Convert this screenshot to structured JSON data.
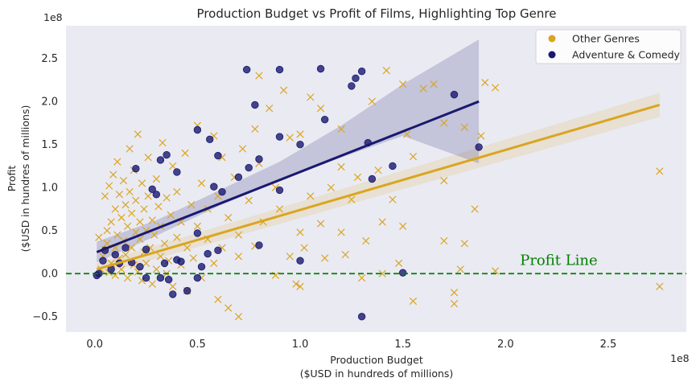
{
  "chart_data": {
    "type": "scatter",
    "title": "Production Budget vs Profit of Films, Highlighting Top Genre",
    "xlabel_line1": "Production Budget",
    "xlabel_line2": "($USD in hundreds of millions)",
    "ylabel_line1": "Profit",
    "ylabel_line2": "($USD in hundres of millions)",
    "x_offset_text": "1e8",
    "y_offset_text": "1e8",
    "xlim": [
      -0.14,
      2.88
    ],
    "ylim": [
      -0.68,
      2.88
    ],
    "x_ticks": [
      0.0,
      0.5,
      1.0,
      1.5,
      2.0,
      2.5
    ],
    "x_tick_labels": [
      "0.0",
      "0.5",
      "1.0",
      "1.5",
      "2.0",
      "2.5"
    ],
    "y_ticks": [
      -0.5,
      0.0,
      0.5,
      1.0,
      1.5,
      2.0,
      2.5
    ],
    "y_tick_labels": [
      "−0.5",
      "0.0",
      "0.5",
      "1.0",
      "1.5",
      "2.0",
      "2.5"
    ],
    "grid": false,
    "legend_position": "top-right",
    "background_color": "#eaeaf2",
    "series": [
      {
        "name": "Other Genres",
        "color": "#daa520",
        "marker": "x",
        "points": [
          [
            0.02,
            0.42
          ],
          [
            0.03,
            0.05
          ],
          [
            0.04,
            0.2
          ],
          [
            0.05,
            0.28
          ],
          [
            0.05,
            0.9
          ],
          [
            0.06,
            0.35
          ],
          [
            0.06,
            0.5
          ],
          [
            0.07,
            1.02
          ],
          [
            0.07,
            0.01
          ],
          [
            0.08,
            0.12
          ],
          [
            0.08,
            0.6
          ],
          [
            0.09,
            1.15
          ],
          [
            0.1,
            0.75
          ],
          [
            0.1,
            0.3
          ],
          [
            0.1,
            -0.02
          ],
          [
            0.11,
            0.45
          ],
          [
            0.11,
            1.3
          ],
          [
            0.12,
            0.92
          ],
          [
            0.12,
            0.18
          ],
          [
            0.13,
            0.65
          ],
          [
            0.13,
            0.05
          ],
          [
            0.14,
            1.08
          ],
          [
            0.14,
            0.38
          ],
          [
            0.15,
            0.8
          ],
          [
            0.15,
            0.22
          ],
          [
            0.16,
            0.55
          ],
          [
            0.16,
            -0.05
          ],
          [
            0.17,
            0.95
          ],
          [
            0.17,
            1.45
          ],
          [
            0.18,
            0.3
          ],
          [
            0.18,
            0.7
          ],
          [
            0.19,
            0.1
          ],
          [
            0.19,
            1.2
          ],
          [
            0.2,
            0.48
          ],
          [
            0.2,
            0.85
          ],
          [
            0.21,
            0.02
          ],
          [
            0.21,
            1.62
          ],
          [
            0.22,
            0.4
          ],
          [
            0.22,
            0.6
          ],
          [
            0.23,
            1.05
          ],
          [
            0.23,
            -0.08
          ],
          [
            0.24,
            0.25
          ],
          [
            0.24,
            0.75
          ],
          [
            0.25,
            0.5
          ],
          [
            0.25,
            0.12
          ],
          [
            0.26,
            0.9
          ],
          [
            0.26,
            1.35
          ],
          [
            0.27,
            0.3
          ],
          [
            0.28,
            0.62
          ],
          [
            0.28,
            -0.12
          ],
          [
            0.29,
            0.45
          ],
          [
            0.3,
            0.05
          ],
          [
            0.3,
            1.1
          ],
          [
            0.31,
            0.78
          ],
          [
            0.32,
            0.2
          ],
          [
            0.32,
            0.55
          ],
          [
            0.33,
            1.52
          ],
          [
            0.34,
            0.35
          ],
          [
            0.35,
            0.0
          ],
          [
            0.35,
            0.88
          ],
          [
            0.36,
            0.15
          ],
          [
            0.37,
            0.68
          ],
          [
            0.38,
            -0.15
          ],
          [
            0.38,
            1.25
          ],
          [
            0.4,
            0.42
          ],
          [
            0.4,
            0.95
          ],
          [
            0.42,
            0.1
          ],
          [
            0.42,
            0.6
          ],
          [
            0.44,
            1.4
          ],
          [
            0.45,
            0.3
          ],
          [
            0.45,
            -0.2
          ],
          [
            0.47,
            0.8
          ],
          [
            0.48,
            0.18
          ],
          [
            0.5,
            0.55
          ],
          [
            0.5,
            1.72
          ],
          [
            0.52,
            -0.05
          ],
          [
            0.52,
            1.05
          ],
          [
            0.55,
            0.4
          ],
          [
            0.55,
            0.75
          ],
          [
            0.58,
            0.12
          ],
          [
            0.58,
            1.6
          ],
          [
            0.6,
            -0.3
          ],
          [
            0.6,
            0.9
          ],
          [
            0.62,
            0.3
          ],
          [
            0.62,
            1.35
          ],
          [
            0.65,
            0.65
          ],
          [
            0.65,
            -0.4
          ],
          [
            0.68,
            1.12
          ],
          [
            0.7,
            0.2
          ],
          [
            0.7,
            0.45
          ],
          [
            0.7,
            -0.5
          ],
          [
            0.72,
            1.45
          ],
          [
            0.75,
            0.85
          ],
          [
            0.78,
            1.68
          ],
          [
            0.78,
            0.32
          ],
          [
            0.8,
            2.3
          ],
          [
            0.8,
            1.28
          ],
          [
            0.82,
            0.6
          ],
          [
            0.85,
            1.92
          ],
          [
            0.88,
            1.0
          ],
          [
            0.88,
            -0.02
          ],
          [
            0.9,
            0.75
          ],
          [
            0.92,
            2.13
          ],
          [
            0.95,
            0.2
          ],
          [
            0.95,
            1.58
          ],
          [
            0.98,
            -0.12
          ],
          [
            1.0,
            0.48
          ],
          [
            1.0,
            1.62
          ],
          [
            1.0,
            -0.15
          ],
          [
            1.02,
            0.3
          ],
          [
            1.05,
            0.9
          ],
          [
            1.05,
            2.05
          ],
          [
            1.1,
            0.58
          ],
          [
            1.1,
            1.92
          ],
          [
            1.12,
            0.18
          ],
          [
            1.15,
            1.0
          ],
          [
            1.2,
            0.48
          ],
          [
            1.2,
            1.68
          ],
          [
            1.2,
            1.24
          ],
          [
            1.22,
            0.22
          ],
          [
            1.25,
            0.86
          ],
          [
            1.28,
            1.12
          ],
          [
            1.3,
            -0.05
          ],
          [
            1.32,
            0.38
          ],
          [
            1.35,
            2.0
          ],
          [
            1.38,
            1.2
          ],
          [
            1.4,
            0.6
          ],
          [
            1.4,
            0.0
          ],
          [
            1.42,
            2.36
          ],
          [
            1.45,
            0.86
          ],
          [
            1.48,
            0.12
          ],
          [
            1.5,
            0.55
          ],
          [
            1.5,
            2.2
          ],
          [
            1.52,
            1.62
          ],
          [
            1.55,
            -0.32
          ],
          [
            1.55,
            1.36
          ],
          [
            1.6,
            2.15
          ],
          [
            1.65,
            2.2
          ],
          [
            1.7,
            0.38
          ],
          [
            1.7,
            1.75
          ],
          [
            1.7,
            1.08
          ],
          [
            1.75,
            -0.22
          ],
          [
            1.75,
            -0.35
          ],
          [
            1.78,
            0.05
          ],
          [
            1.8,
            0.35
          ],
          [
            1.8,
            1.7
          ],
          [
            1.85,
            0.75
          ],
          [
            1.88,
            1.6
          ],
          [
            1.9,
            2.22
          ],
          [
            1.95,
            0.03
          ],
          [
            1.95,
            2.16
          ],
          [
            2.75,
            1.19
          ],
          [
            2.75,
            -0.15
          ]
        ]
      },
      {
        "name": "Adventure & Comedy",
        "color": "#191970",
        "marker": "o",
        "points": [
          [
            0.01,
            -0.02
          ],
          [
            0.02,
            0.0
          ],
          [
            0.04,
            0.15
          ],
          [
            0.05,
            0.27
          ],
          [
            0.08,
            0.05
          ],
          [
            0.1,
            0.22
          ],
          [
            0.12,
            0.12
          ],
          [
            0.15,
            0.3
          ],
          [
            0.18,
            0.13
          ],
          [
            0.2,
            1.22
          ],
          [
            0.22,
            0.08
          ],
          [
            0.25,
            0.28
          ],
          [
            0.25,
            -0.05
          ],
          [
            0.28,
            0.98
          ],
          [
            0.3,
            0.92
          ],
          [
            0.32,
            -0.05
          ],
          [
            0.32,
            1.32
          ],
          [
            0.34,
            0.12
          ],
          [
            0.35,
            1.38
          ],
          [
            0.36,
            -0.07
          ],
          [
            0.38,
            -0.24
          ],
          [
            0.4,
            1.18
          ],
          [
            0.4,
            0.16
          ],
          [
            0.42,
            0.14
          ],
          [
            0.45,
            -0.2
          ],
          [
            0.5,
            1.67
          ],
          [
            0.5,
            0.47
          ],
          [
            0.5,
            -0.05
          ],
          [
            0.52,
            0.08
          ],
          [
            0.55,
            0.23
          ],
          [
            0.56,
            1.56
          ],
          [
            0.58,
            1.01
          ],
          [
            0.6,
            0.27
          ],
          [
            0.6,
            1.37
          ],
          [
            0.62,
            0.95
          ],
          [
            0.7,
            1.12
          ],
          [
            0.74,
            2.37
          ],
          [
            0.75,
            1.23
          ],
          [
            0.78,
            1.96
          ],
          [
            0.8,
            0.33
          ],
          [
            0.8,
            1.33
          ],
          [
            0.9,
            0.97
          ],
          [
            0.9,
            1.59
          ],
          [
            0.9,
            2.37
          ],
          [
            1.0,
            1.5
          ],
          [
            1.0,
            0.15
          ],
          [
            1.1,
            2.38
          ],
          [
            1.12,
            1.79
          ],
          [
            1.25,
            2.18
          ],
          [
            1.27,
            2.27
          ],
          [
            1.3,
            2.35
          ],
          [
            1.3,
            -0.5
          ],
          [
            1.33,
            1.52
          ],
          [
            1.35,
            1.1
          ],
          [
            1.45,
            1.25
          ],
          [
            1.5,
            0.01
          ],
          [
            1.75,
            2.08
          ],
          [
            1.87,
            1.47
          ]
        ]
      }
    ],
    "regressions": [
      {
        "series": "Other Genres",
        "color": "#daa520",
        "x": [
          0.01,
          2.75
        ],
        "y": [
          0.05,
          1.96
        ],
        "ci_upper": [
          0.12,
          2.1
        ],
        "ci_lower": [
          -0.02,
          1.82
        ]
      },
      {
        "series": "Adventure & Comedy",
        "color": "#191970",
        "x": [
          0.01,
          1.87
        ],
        "y": [
          0.25,
          2.0
        ],
        "ci_upper_x": [
          0.01,
          0.3,
          0.6,
          0.9,
          1.2,
          1.5,
          1.87
        ],
        "ci_upper": [
          0.37,
          0.62,
          0.96,
          1.3,
          1.72,
          2.2,
          2.72
        ],
        "ci_lower": [
          0.13,
          0.44,
          0.78,
          1.08,
          1.35,
          1.6,
          1.28
        ]
      }
    ],
    "reference_line": {
      "y": 0.0,
      "color": "#008000",
      "style": "dashed",
      "label": "Profit Line",
      "label_x": 2.07,
      "label_y": 0.1
    }
  }
}
